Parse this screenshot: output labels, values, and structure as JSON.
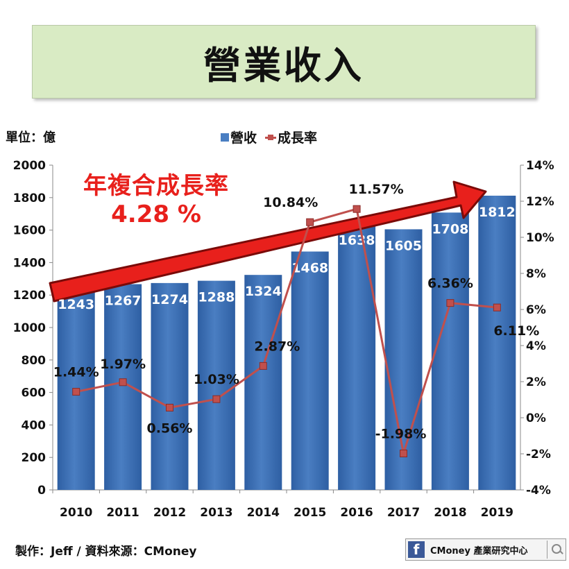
{
  "title": "營業收入",
  "unit_label": "單位：億",
  "legend": {
    "bar_label": "營收",
    "line_label": "成長率"
  },
  "cagr": {
    "label": "年複合成長率",
    "value": "4.28 %"
  },
  "footer": "製作：Jeff / 資料來源：CMoney",
  "badge": {
    "fb": "f",
    "text": "CMoney 產業研究中心"
  },
  "colors": {
    "bar": "#4a7ec2",
    "bar_dark": "#2e5fa3",
    "line": "#c0504d",
    "arrow": "#e8201c",
    "title_bg": "#d9ebc4"
  },
  "chart_data": {
    "type": "bar",
    "categories": [
      "2010",
      "2011",
      "2012",
      "2013",
      "2014",
      "2015",
      "2016",
      "2017",
      "2018",
      "2019"
    ],
    "series": [
      {
        "name": "營收",
        "type": "bar",
        "axis": "left",
        "values": [
          1243,
          1267,
          1274,
          1288,
          1324,
          1468,
          1638,
          1605,
          1708,
          1812
        ],
        "labels": [
          "1243",
          "1267",
          "1274",
          "1288",
          "1324",
          "1468",
          "1638",
          "1605",
          "1708",
          "1812"
        ]
      },
      {
        "name": "成長率",
        "type": "line",
        "axis": "right",
        "values": [
          1.44,
          1.97,
          0.56,
          1.03,
          2.87,
          10.84,
          11.57,
          -1.98,
          6.36,
          6.11
        ],
        "labels": [
          "1.44%",
          "1.97%",
          "0.56%",
          "1.03%",
          "2.87%",
          "10.84%",
          "11.57%",
          "-1.98%",
          "6.36%",
          "6.11%"
        ]
      }
    ],
    "y_left": {
      "min": 0,
      "max": 2000,
      "ticks": [
        "0",
        "200",
        "400",
        "600",
        "800",
        "1000",
        "1200",
        "1400",
        "1600",
        "1800",
        "2000"
      ]
    },
    "y_right": {
      "min": -4,
      "max": 14,
      "ticks": [
        "-4%",
        "-2%",
        "0%",
        "2%",
        "4%",
        "6%",
        "8%",
        "10%",
        "12%",
        "14%"
      ]
    },
    "grid": false
  }
}
